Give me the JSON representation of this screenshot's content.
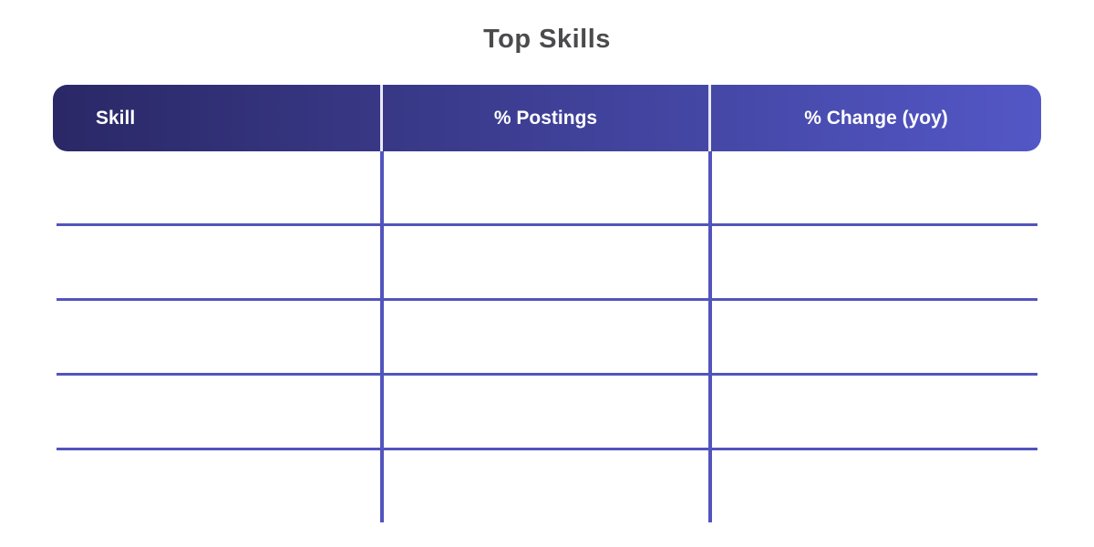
{
  "title": "Top Skills",
  "table": {
    "columns": [
      {
        "label": "Skill",
        "align": "left"
      },
      {
        "label": "% Postings",
        "align": "center"
      },
      {
        "label": "% Change (yoy)",
        "align": "center"
      }
    ],
    "rows": [
      {
        "skill": "",
        "postings": "",
        "change": ""
      },
      {
        "skill": "",
        "postings": "",
        "change": ""
      },
      {
        "skill": "",
        "postings": "",
        "change": ""
      },
      {
        "skill": "",
        "postings": "",
        "change": ""
      },
      {
        "skill": "",
        "postings": "",
        "change": ""
      }
    ]
  },
  "colors": {
    "background": "#ffffff",
    "title_text": "#4b4b4d",
    "header_gradient_start": "#2a2866",
    "header_gradient_end": "#5357c6",
    "header_text": "#ffffff",
    "header_divider": "#e9e9f7",
    "grid_line": "#5254bd"
  },
  "chart_data": {
    "type": "table",
    "title": "Top Skills",
    "columns": [
      "Skill",
      "% Postings",
      "% Change (yoy)"
    ],
    "rows": [
      [
        "",
        "",
        ""
      ],
      [
        "",
        "",
        ""
      ],
      [
        "",
        "",
        ""
      ],
      [
        "",
        "",
        ""
      ],
      [
        "",
        "",
        ""
      ]
    ],
    "layout": {
      "header_style": "gradient indigo bar, rounded corners",
      "body": "empty rows with indigo grid lines, no outer border",
      "row_count": 5
    }
  }
}
